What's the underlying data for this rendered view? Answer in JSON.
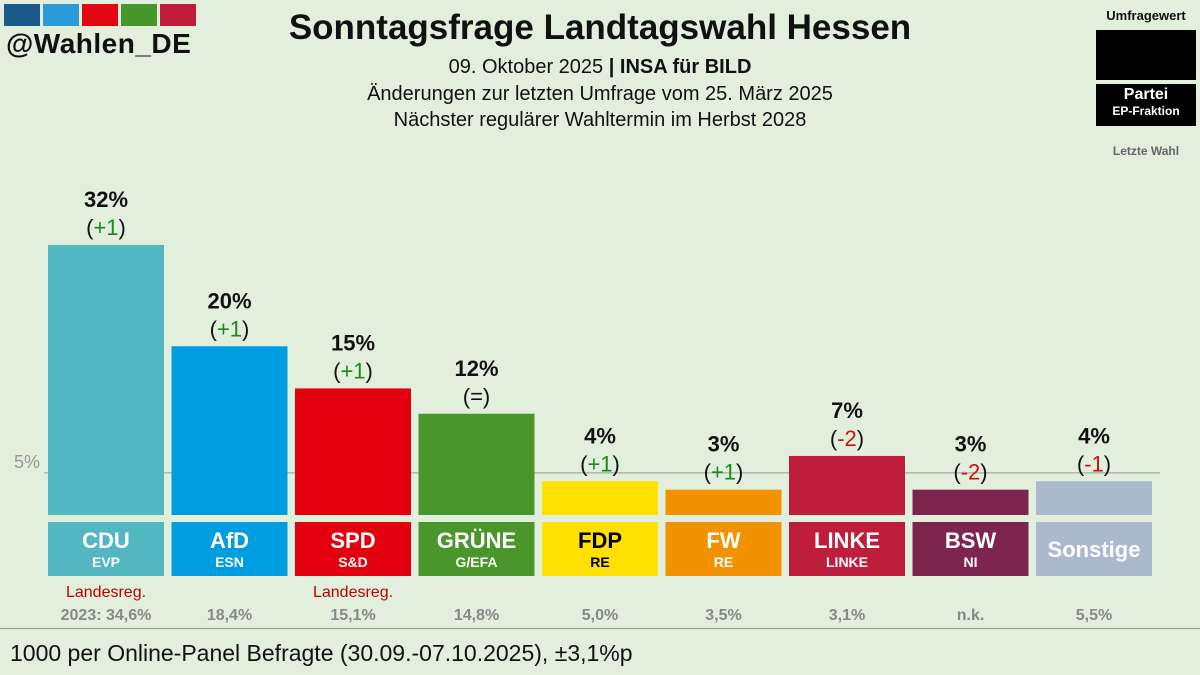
{
  "header": {
    "handle": "@Wahlen_DE",
    "title": "Sonntagsfrage Landtagswahl Hessen",
    "date": "09. Oktober 2025",
    "separator": "|",
    "pollster": "INSA für BILD",
    "changes_note": "Änderungen zur letzten Umfrage vom 25. März 2025",
    "next_election": "Nächster regulärer Wahltermin im Herbst 2028",
    "logo_colors": [
      "#1a5a8a",
      "#2a9ad8",
      "#e30613",
      "#46962b",
      "#be1e3c"
    ]
  },
  "legend": {
    "title": "Umfragewert",
    "party": "Partei",
    "faction": "EP-Fraktion",
    "last_election": "Letzte Wahl"
  },
  "footer": "1000 per Online-Panel Befragte (30.09.-07.10.2025), ±3,1%p",
  "chart_data": {
    "type": "bar",
    "ylim": [
      0,
      32
    ],
    "threshold_label": "5%",
    "threshold_value": 5,
    "categories": [
      "CDU",
      "AfD",
      "SPD",
      "GRÜNE",
      "FDP",
      "FW",
      "LINKE",
      "BSW",
      "Sonstige"
    ],
    "bars": [
      {
        "party": "CDU",
        "faction": "EVP",
        "value": 32,
        "value_label": "32%",
        "change": "+1",
        "change_dir": "up",
        "color": "#52b7c1",
        "text_color": "#ffffff",
        "gov_label": "Landesreg.",
        "last_label": "2023: 34,6%"
      },
      {
        "party": "AfD",
        "faction": "ESN",
        "value": 20,
        "value_label": "20%",
        "change": "+1",
        "change_dir": "up",
        "color": "#009ee0",
        "text_color": "#ffffff",
        "gov_label": "",
        "last_label": "18,4%"
      },
      {
        "party": "SPD",
        "faction": "S&D",
        "value": 15,
        "value_label": "15%",
        "change": "+1",
        "change_dir": "up",
        "color": "#e3000f",
        "text_color": "#ffffff",
        "gov_label": "Landesreg.",
        "last_label": "15,1%"
      },
      {
        "party": "GRÜNE",
        "faction": "G/EFA",
        "value": 12,
        "value_label": "12%",
        "change": "=",
        "change_dir": "same",
        "color": "#4a962b",
        "text_color": "#ffffff",
        "gov_label": "",
        "last_label": "14,8%"
      },
      {
        "party": "FDP",
        "faction": "RE",
        "value": 4,
        "value_label": "4%",
        "change": "+1",
        "change_dir": "up",
        "color": "#ffe000",
        "text_color": "#000000",
        "gov_label": "",
        "last_label": "5,0%"
      },
      {
        "party": "FW",
        "faction": "RE",
        "value": 3,
        "value_label": "3%",
        "change": "+1",
        "change_dir": "up",
        "color": "#f39200",
        "text_color": "#ffffff",
        "gov_label": "",
        "last_label": "3,5%"
      },
      {
        "party": "LINKE",
        "faction": "LINKE",
        "value": 7,
        "value_label": "7%",
        "change": "-2",
        "change_dir": "down",
        "color": "#be1e3c",
        "text_color": "#ffffff",
        "gov_label": "",
        "last_label": "3,1%"
      },
      {
        "party": "BSW",
        "faction": "NI",
        "value": 3,
        "value_label": "3%",
        "change": "-2",
        "change_dir": "down",
        "color": "#7d254f",
        "text_color": "#ffffff",
        "gov_label": "",
        "last_label": "n.k."
      },
      {
        "party": "Sonstige",
        "faction": "",
        "value": 4,
        "value_label": "4%",
        "change": "-1",
        "change_dir": "down",
        "color": "#aab9cc",
        "text_color": "#ffffff",
        "gov_label": "",
        "last_label": "5,5%"
      }
    ],
    "colors": {
      "up": "#1a8a1a",
      "down": "#cc1111",
      "same": "#111111",
      "gov": "#c00000",
      "last": "#888888",
      "threshold": "#999999"
    }
  }
}
